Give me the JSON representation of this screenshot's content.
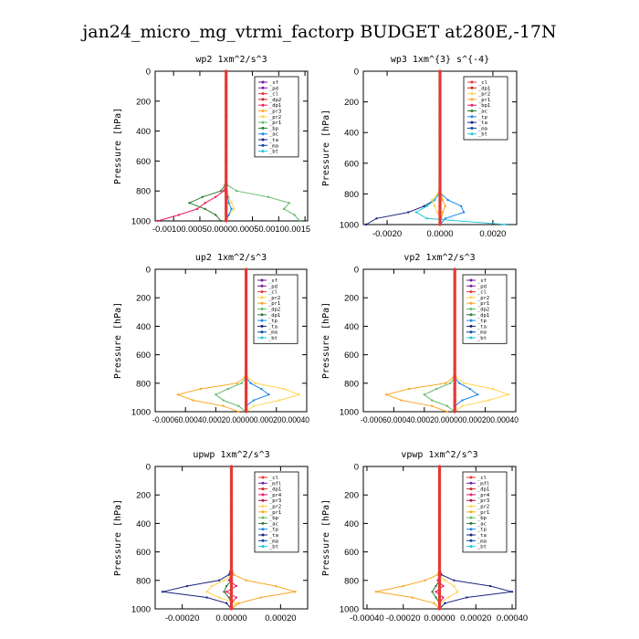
{
  "figure": {
    "title": "jan24_micro_mg_vtrmi_factorp  BUDGET at280E,-17N"
  },
  "chart_data": [
    {
      "type": "line",
      "title": "wp2   1xm^2/s^3",
      "ylabel": "Pressure [hPa]",
      "ylim": [
        1000,
        0
      ],
      "xlim": [
        -0.00135,
        0.00155
      ],
      "xticks": [
        -0.001,
        -0.0005,
        0.0,
        0.0005,
        0.001,
        0.0015
      ],
      "xticklabels": [
        "-0.00100",
        "-0.00050",
        "0.00000",
        "0.00050",
        "0.00100",
        "0.00150"
      ],
      "xtick_merged": "-0.00100.00050.00000.00050.00100.0015",
      "yticks": [
        0,
        200,
        400,
        600,
        800,
        1000
      ],
      "legend_position": "top-right",
      "legend": [
        "_sf",
        "_pd",
        "_cl",
        "_dp2",
        "_dp1",
        "_pr3",
        "_pr2",
        "_pr1",
        "_bp",
        "_ac",
        "_ta",
        "_ma",
        "_bt"
      ],
      "series_colors": [
        "#6a1b9a",
        "#7b1fa2",
        "#e53935",
        "#c62828",
        "#e91e63",
        "#f9a825",
        "#ffd54f",
        "#66bb6a",
        "#2e7d32",
        "#1e88e5",
        "#1a237e",
        "#0d47a1",
        "#26c6da"
      ],
      "pressure": [
        0,
        100,
        200,
        300,
        400,
        500,
        600,
        700,
        760,
        800,
        840,
        880,
        920,
        960,
        1000
      ],
      "series": [
        {
          "name": "_pr1",
          "values": [
            0,
            0,
            0,
            0,
            0,
            0,
            0,
            0,
            2e-05,
            0.0002,
            0.0008,
            0.0012,
            0.0011,
            0.0013,
            0.0014
          ]
        },
        {
          "name": "_bp",
          "values": [
            0,
            0,
            0,
            0,
            0,
            0,
            0,
            0,
            -2e-05,
            -0.0001,
            -0.00045,
            -0.0007,
            -0.0004,
            -0.0002,
            -0.0001
          ]
        },
        {
          "name": "_dp1",
          "values": [
            0,
            0,
            0,
            0,
            0,
            0,
            0,
            0,
            0,
            -5e-05,
            -0.0002,
            -0.0004,
            -0.00055,
            -0.0009,
            -0.0013
          ]
        },
        {
          "name": "_pr2",
          "values": [
            0,
            0,
            0,
            0,
            0,
            0,
            0,
            0,
            0,
            2e-05,
            5e-05,
            0.0001,
            0.00015,
            5e-05,
            0
          ]
        },
        {
          "name": "_ac",
          "values": [
            0,
            0,
            0,
            0,
            0,
            0,
            0,
            0,
            0,
            1e-05,
            3e-05,
            5e-05,
            0.0001,
            5e-05,
            0
          ]
        },
        {
          "name": "_cl",
          "values": [
            0,
            0,
            0,
            0,
            0,
            0,
            0,
            0,
            0,
            0,
            0,
            0,
            0,
            0,
            0
          ]
        }
      ]
    },
    {
      "type": "line",
      "title": "wp3   1xm^{3} s^{-4}",
      "ylabel": "Pressure [hPa]",
      "ylim": [
        1000,
        0
      ],
      "xlim": [
        -0.0029,
        0.0029
      ],
      "xticks": [
        -0.002,
        0.0,
        0.002
      ],
      "xticklabels": [
        "-0.0020",
        "0.0000",
        "0.0020"
      ],
      "yticks": [
        0,
        200,
        400,
        600,
        800,
        1000
      ],
      "legend_position": "top-right",
      "legend": [
        "_cl",
        "_dp1",
        "_pr2",
        "_pr1",
        "_bp1",
        "_ac",
        "_tp",
        "_ta",
        "_ma",
        "_bt"
      ],
      "series_colors": [
        "#e53935",
        "#c62828",
        "#ffd54f",
        "#f9a825",
        "#e91e63",
        "#2e7d32",
        "#1e88e5",
        "#1a237e",
        "#0d47a1",
        "#26c6da"
      ],
      "pressure": [
        0,
        100,
        200,
        300,
        400,
        500,
        600,
        700,
        760,
        800,
        840,
        880,
        920,
        960,
        1000
      ],
      "series": [
        {
          "name": "_tp",
          "values": [
            0,
            0,
            0,
            0,
            0,
            0,
            0,
            0,
            0,
            5e-05,
            0.0003,
            0.0008,
            0.0009,
            0.0002,
            0
          ]
        },
        {
          "name": "_ta",
          "values": [
            0,
            0,
            0,
            0,
            0,
            0,
            0,
            0,
            0,
            -5e-05,
            -0.0002,
            -0.0006,
            -0.0012,
            -0.0024,
            -0.0028
          ]
        },
        {
          "name": "_bt",
          "values": [
            0,
            0,
            0,
            0,
            0,
            0,
            0,
            0,
            0,
            -3e-05,
            -0.0002,
            -0.0005,
            -0.0009,
            -0.0005,
            0.0025
          ]
        },
        {
          "name": "_pr2",
          "values": [
            0,
            0,
            0,
            0,
            0,
            0,
            0,
            0,
            0,
            -0.0001,
            -0.0003,
            -0.0002,
            -0.0001,
            0,
            0
          ]
        },
        {
          "name": "_pr1",
          "values": [
            0,
            0,
            0,
            0,
            0,
            0,
            0,
            0,
            0,
            5e-05,
            0.0001,
            0.0002,
            0.0001,
            5e-05,
            0
          ]
        },
        {
          "name": "_cl",
          "values": [
            0,
            0,
            0,
            0,
            0,
            0,
            0,
            0,
            0,
            0,
            0,
            0,
            0,
            0,
            0
          ]
        }
      ]
    },
    {
      "type": "line",
      "title": "up2   1xm^2/s^3",
      "ylabel": "Pressure [hPa]",
      "ylim": [
        1000,
        0
      ],
      "xlim": [
        -0.0006,
        0.0004
      ],
      "xticks": [
        -0.0006,
        -0.0004,
        -0.0002,
        0.0,
        0.0002,
        0.0004
      ],
      "xticklabels": [
        "-0.00060",
        "-0.00040",
        "-0.00020",
        "0.00000",
        "0.00020",
        "0.00040"
      ],
      "xtick_merged": "-0.00060.00040.00020.000000.000200.00040",
      "yticks": [
        0,
        200,
        400,
        600,
        800,
        1000
      ],
      "legend_position": "top-right",
      "legend": [
        "_sf",
        "_pd",
        "_cl",
        "_pr2",
        "_pr1",
        "_dp2",
        "_dp1",
        "_tp",
        "_ta",
        "_ma",
        "_bt"
      ],
      "series_colors": [
        "#6a1b9a",
        "#7b1fa2",
        "#e53935",
        "#ffd54f",
        "#f9a825",
        "#66bb6a",
        "#2e7d32",
        "#1e88e5",
        "#1a237e",
        "#0d47a1",
        "#26c6da"
      ],
      "pressure": [
        0,
        100,
        200,
        300,
        400,
        500,
        600,
        700,
        760,
        800,
        840,
        880,
        920,
        960,
        1000
      ],
      "series": [
        {
          "name": "_pr1",
          "values": [
            0,
            0,
            0,
            0,
            0,
            0,
            0,
            0,
            -1e-05,
            -6e-05,
            -0.0003,
            -0.00045,
            -0.00035,
            -0.00015,
            -5e-05
          ]
        },
        {
          "name": "_dp2",
          "values": [
            0,
            0,
            0,
            0,
            0,
            0,
            0,
            0,
            0,
            -3e-05,
            -0.00012,
            -0.0002,
            -0.00015,
            -5e-05,
            0
          ]
        },
        {
          "name": "_pr2",
          "values": [
            0,
            0,
            0,
            0,
            0,
            0,
            0,
            0,
            1e-05,
            6e-05,
            0.00025,
            0.00035,
            0.00022,
            5e-05,
            0
          ]
        },
        {
          "name": "_tp",
          "values": [
            0,
            0,
            0,
            0,
            0,
            0,
            0,
            0,
            0,
            3e-05,
            0.0001,
            0.00015,
            5e-05,
            0,
            0
          ]
        },
        {
          "name": "_cl",
          "values": [
            0,
            0,
            0,
            0,
            0,
            0,
            0,
            0,
            0,
            0,
            0,
            0,
            0,
            0,
            0
          ]
        }
      ]
    },
    {
      "type": "line",
      "title": "vp2   1xm^2/s^3",
      "ylabel": "Pressure [hPa]",
      "ylim": [
        1000,
        0
      ],
      "xlim": [
        -0.0006,
        0.0004
      ],
      "xticks": [
        -0.0006,
        -0.0004,
        -0.0002,
        0.0,
        0.0002,
        0.0004
      ],
      "xticklabels": [
        "-0.00060",
        "-0.00040",
        "-0.00020",
        "0.00000",
        "0.00020",
        "0.00040"
      ],
      "xtick_merged": "-0.00060.00040.00020.000000.000200.00040",
      "yticks": [
        0,
        200,
        400,
        600,
        800,
        1000
      ],
      "legend_position": "top-right",
      "legend": [
        "_sf",
        "_pd",
        "_cl",
        "_pr2",
        "_pr1",
        "_dp2",
        "_dp1",
        "_tp",
        "_ta",
        "_ma",
        "_bt"
      ],
      "series_colors": [
        "#6a1b9a",
        "#7b1fa2",
        "#e53935",
        "#ffd54f",
        "#f9a825",
        "#66bb6a",
        "#2e7d32",
        "#1e88e5",
        "#1a237e",
        "#0d47a1",
        "#26c6da"
      ],
      "pressure": [
        0,
        100,
        200,
        300,
        400,
        500,
        600,
        700,
        760,
        800,
        840,
        880,
        920,
        960,
        1000
      ],
      "series": [
        {
          "name": "_pr1",
          "values": [
            0,
            0,
            0,
            0,
            0,
            0,
            0,
            0,
            -1e-05,
            -6e-05,
            -0.0003,
            -0.00045,
            -0.00035,
            -0.00015,
            -5e-05
          ]
        },
        {
          "name": "_dp2",
          "values": [
            0,
            0,
            0,
            0,
            0,
            0,
            0,
            0,
            0,
            -3e-05,
            -0.00012,
            -0.0002,
            -0.00015,
            -5e-05,
            0
          ]
        },
        {
          "name": "_pr2",
          "values": [
            0,
            0,
            0,
            0,
            0,
            0,
            0,
            0,
            1e-05,
            6e-05,
            0.00025,
            0.00035,
            0.00022,
            5e-05,
            0
          ]
        },
        {
          "name": "_tp",
          "values": [
            0,
            0,
            0,
            0,
            0,
            0,
            0,
            0,
            0,
            3e-05,
            0.0001,
            0.00015,
            5e-05,
            0,
            0
          ]
        },
        {
          "name": "_cl",
          "values": [
            0,
            0,
            0,
            0,
            0,
            0,
            0,
            0,
            0,
            0,
            0,
            0,
            0,
            0,
            0
          ]
        }
      ]
    },
    {
      "type": "line",
      "title": "upwp   1xm^2/s^3",
      "ylabel": "Pressure [hPa]",
      "ylim": [
        1000,
        0
      ],
      "xlim": [
        -0.00031,
        0.00031
      ],
      "xticks": [
        -0.0002,
        0.0,
        0.0002
      ],
      "xticklabels": [
        "-0.00020",
        "0.00000",
        "0.00020"
      ],
      "yticks": [
        0,
        200,
        400,
        600,
        800,
        1000
      ],
      "legend_position": "top-right",
      "legend": [
        "_cl",
        "_mfl",
        "_dp1",
        "_pr4",
        "_pr3",
        "_pr2",
        "_pr1",
        "_bp",
        "_ac",
        "_tp",
        "_ta",
        "_ma",
        "_bt"
      ],
      "series_colors": [
        "#e53935",
        "#7b1fa2",
        "#c62828",
        "#e91e63",
        "#ad1457",
        "#ffd54f",
        "#f9a825",
        "#66bb6a",
        "#2e7d32",
        "#1e88e5",
        "#1a237e",
        "#0d47a1",
        "#26c6da"
      ],
      "pressure": [
        0,
        100,
        200,
        300,
        400,
        500,
        600,
        700,
        760,
        800,
        840,
        880,
        920,
        960,
        1000
      ],
      "series": [
        {
          "name": "_pr1",
          "values": [
            0,
            0,
            0,
            0,
            0,
            0,
            0,
            0,
            1e-05,
            6e-05,
            0.00018,
            0.00026,
            0.00012,
            3e-05,
            0
          ]
        },
        {
          "name": "_ta",
          "values": [
            0,
            0,
            0,
            0,
            0,
            0,
            0,
            0,
            -1e-05,
            -5e-05,
            -0.00018,
            -0.00028,
            -0.0001,
            -2e-05,
            0
          ]
        },
        {
          "name": "_pr2",
          "values": [
            0,
            0,
            0,
            0,
            0,
            0,
            0,
            0,
            0,
            -3e-05,
            -8e-05,
            -0.0001,
            -5e-05,
            2e-05,
            0
          ]
        },
        {
          "name": "_ac",
          "values": [
            0,
            0,
            0,
            0,
            0,
            0,
            0,
            0,
            0,
            0,
            -2e-05,
            -3e-05,
            -1e-05,
            0,
            0
          ]
        },
        {
          "name": "_pr4",
          "values": [
            0,
            0,
            0,
            0,
            0,
            0,
            0,
            0,
            0,
            -1e-05,
            2e-05,
            -2e-05,
            2e-05,
            0,
            0
          ]
        },
        {
          "name": "_cl",
          "values": [
            0,
            0,
            0,
            0,
            0,
            0,
            0,
            0,
            0,
            0,
            0,
            0,
            0,
            0,
            0
          ]
        }
      ]
    },
    {
      "type": "line",
      "title": "vpwp   1xm^2/s^3",
      "ylabel": "Pressure [hPa]",
      "ylim": [
        1000,
        0
      ],
      "xlim": [
        -0.00042,
        0.00042
      ],
      "xticks": [
        -0.0004,
        -0.0002,
        0.0,
        0.0002,
        0.0004
      ],
      "xticklabels": [
        "-0.00040",
        "-0.00020",
        "0.00000",
        "0.00020",
        "0.00040"
      ],
      "yticks": [
        0,
        200,
        400,
        600,
        800,
        1000
      ],
      "legend_position": "top-right",
      "legend": [
        "_cl",
        "_mfl",
        "_dp1",
        "_pr4",
        "_pr3",
        "_pr2",
        "_pr1",
        "_bp",
        "_ac",
        "_tp",
        "_ta",
        "_ma",
        "_bt"
      ],
      "series_colors": [
        "#e53935",
        "#7b1fa2",
        "#c62828",
        "#e91e63",
        "#ad1457",
        "#ffd54f",
        "#f9a825",
        "#66bb6a",
        "#2e7d32",
        "#1e88e5",
        "#1a237e",
        "#0d47a1",
        "#26c6da"
      ],
      "pressure": [
        0,
        100,
        200,
        300,
        400,
        500,
        600,
        700,
        760,
        800,
        840,
        880,
        920,
        960,
        1000
      ],
      "series": [
        {
          "name": "_ta",
          "values": [
            0,
            0,
            0,
            0,
            0,
            0,
            0,
            0,
            1e-05,
            8e-05,
            0.00028,
            0.0004,
            0.00015,
            3e-05,
            0
          ]
        },
        {
          "name": "_pr1",
          "values": [
            0,
            0,
            0,
            0,
            0,
            0,
            0,
            0,
            -1e-05,
            -8e-05,
            -0.0002,
            -0.00035,
            -0.00015,
            -3e-05,
            0
          ]
        },
        {
          "name": "_pr2",
          "values": [
            0,
            0,
            0,
            0,
            0,
            0,
            0,
            0,
            0,
            3e-05,
            8e-05,
            0.0001,
            5e-05,
            0,
            0
          ]
        },
        {
          "name": "_ac",
          "values": [
            0,
            0,
            0,
            0,
            0,
            0,
            0,
            0,
            0,
            0,
            -2e-05,
            -4e-05,
            -2e-05,
            0,
            0
          ]
        },
        {
          "name": "_pr4",
          "values": [
            0,
            0,
            0,
            0,
            0,
            0,
            0,
            0,
            0,
            -1e-05,
            2e-05,
            -2e-05,
            2e-05,
            0,
            0
          ]
        },
        {
          "name": "_cl",
          "values": [
            0,
            0,
            0,
            0,
            0,
            0,
            0,
            0,
            0,
            0,
            0,
            0,
            0,
            0,
            0
          ]
        }
      ]
    }
  ]
}
